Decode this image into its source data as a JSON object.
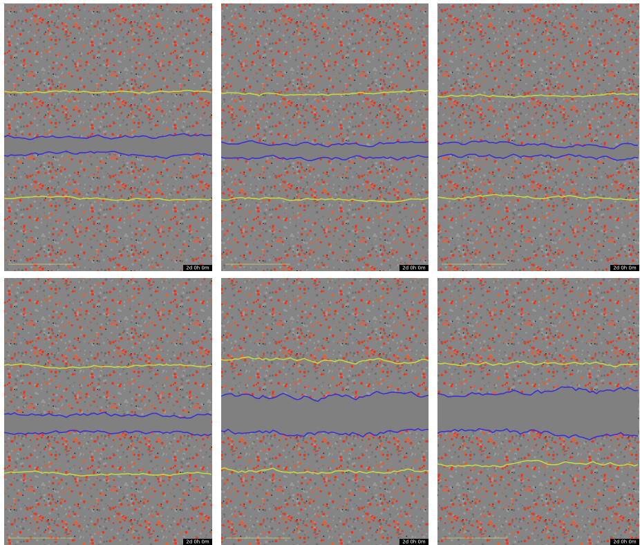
{
  "panels": [
    {
      "timestamp": "2d 0h 0m"
    },
    {
      "timestamp": "2d 0h 0m"
    },
    {
      "timestamp": "2d 0h 0m"
    },
    {
      "timestamp": "2d 0h 0m"
    },
    {
      "timestamp": "2d 0h 0m"
    },
    {
      "timestamp": "2d 0h 0m"
    }
  ]
}
